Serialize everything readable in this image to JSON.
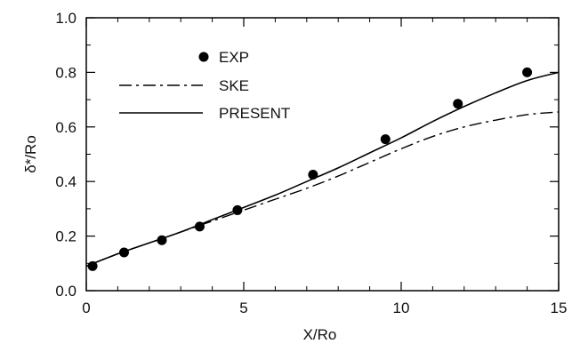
{
  "chart_data": {
    "type": "line",
    "title": "",
    "xlabel": "X/Ro",
    "ylabel": "δ*/Ro",
    "xlim": [
      0,
      15
    ],
    "ylim": [
      0.0,
      1.0
    ],
    "x_ticks": [
      0,
      5,
      10,
      15
    ],
    "y_ticks": [
      0.0,
      0.2,
      0.4,
      0.6,
      0.8,
      1.0
    ],
    "x_tick_labels": [
      "0",
      "5",
      "10",
      "15"
    ],
    "y_tick_labels": [
      "0.0",
      "0.2",
      "0.4",
      "0.6",
      "0.8",
      "1.0"
    ],
    "grid": false,
    "legend_position": "top-left",
    "series": [
      {
        "name": "EXP",
        "style": "markers",
        "x": [
          0.2,
          1.2,
          2.4,
          3.6,
          4.8,
          7.2,
          9.5,
          11.8,
          14.0
        ],
        "y": [
          0.09,
          0.14,
          0.185,
          0.235,
          0.295,
          0.425,
          0.555,
          0.685,
          0.8
        ]
      },
      {
        "name": "SKE",
        "style": "dash-dot",
        "x": [
          0,
          1,
          2,
          3,
          4,
          5,
          6,
          7,
          8,
          9,
          10,
          11,
          12,
          13,
          14,
          15
        ],
        "y": [
          0.09,
          0.135,
          0.175,
          0.215,
          0.255,
          0.295,
          0.335,
          0.375,
          0.42,
          0.47,
          0.52,
          0.565,
          0.6,
          0.625,
          0.645,
          0.655
        ]
      },
      {
        "name": "PRESENT",
        "style": "solid",
        "x": [
          0,
          1,
          2,
          3,
          4,
          5,
          6,
          7,
          8,
          9,
          10,
          11,
          12,
          13,
          14,
          15
        ],
        "y": [
          0.09,
          0.135,
          0.175,
          0.215,
          0.26,
          0.305,
          0.35,
          0.4,
          0.45,
          0.505,
          0.56,
          0.62,
          0.675,
          0.725,
          0.77,
          0.8
        ]
      }
    ]
  }
}
